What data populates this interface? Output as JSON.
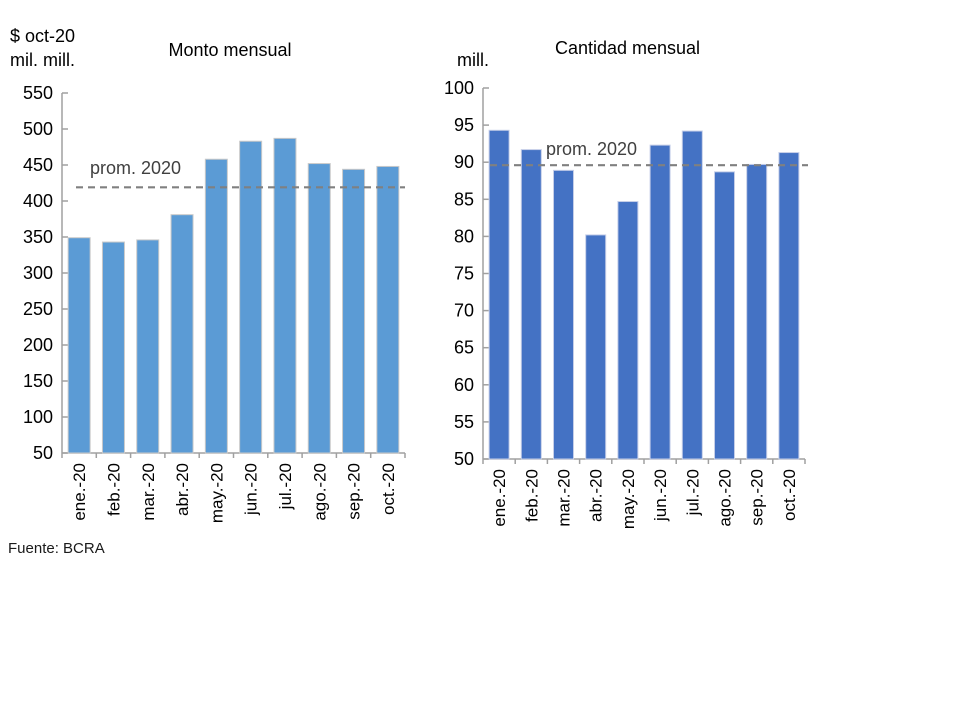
{
  "footer": {
    "source": "Fuente: BCRA"
  },
  "chart_data": [
    {
      "type": "bar",
      "title": "Monto mensual",
      "unit_lines": [
        "$ oct-20",
        "mil. mill."
      ],
      "xlabel": "",
      "ylabel": "$ oct-20 mil. mill.",
      "categories": [
        "ene.-20",
        "feb.-20",
        "mar.-20",
        "abr.-20",
        "may.-20",
        "jun.-20",
        "jul.-20",
        "ago.-20",
        "sep.-20",
        "oct.-20"
      ],
      "values": [
        349,
        343,
        346,
        381,
        458,
        483,
        487,
        452,
        444,
        448
      ],
      "ylim": [
        50,
        550
      ],
      "ystep": 50,
      "y_ticks": [
        50,
        100,
        150,
        200,
        250,
        300,
        350,
        400,
        450,
        500,
        550
      ],
      "avg_line": {
        "label": "prom. 2020",
        "value": 419
      },
      "bar_color": "#5B9BD5",
      "bar_border": "#C9C9C9",
      "axis_color": "#A0A0A0",
      "avg_line_color": "#808080",
      "grid": false,
      "legend": "none"
    },
    {
      "type": "bar",
      "title": "Cantidad mensual",
      "unit_lines": [
        "mill."
      ],
      "xlabel": "",
      "ylabel": "mill.",
      "categories": [
        "ene.-20",
        "feb.-20",
        "mar.-20",
        "abr.-20",
        "may.-20",
        "jun.-20",
        "jul.-20",
        "ago.-20",
        "sep.-20",
        "oct.-20"
      ],
      "values": [
        94.3,
        91.7,
        88.9,
        80.2,
        84.7,
        92.3,
        94.2,
        88.7,
        89.7,
        91.3
      ],
      "ylim": [
        50,
        100
      ],
      "ystep": 5,
      "y_ticks": [
        50,
        55,
        60,
        65,
        70,
        75,
        80,
        85,
        90,
        95,
        100
      ],
      "avg_line": {
        "label": "prom. 2020",
        "value": 89.6
      },
      "bar_color": "#4472C4",
      "bar_border": "#C5CEE8",
      "axis_color": "#A0A0A0",
      "avg_line_color": "#808080",
      "grid": false,
      "legend": "none"
    }
  ]
}
